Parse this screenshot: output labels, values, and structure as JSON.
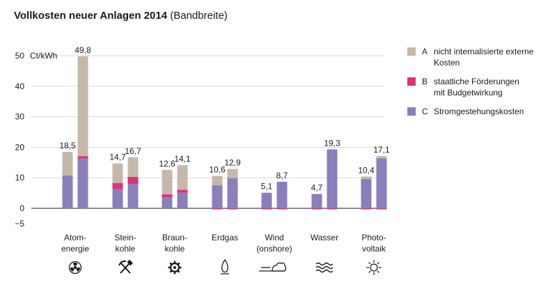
{
  "chart_data": {
    "type": "bar",
    "stacked": true,
    "title": "Vollkosten neuer Anlagen 2014",
    "subtitle": "(Bandbreite)",
    "ylabel": "Ct/kWh",
    "ylim": [
      -5,
      50
    ],
    "yticks": [
      -5,
      0,
      10,
      20,
      30,
      40,
      50
    ],
    "grid": true,
    "legend_position": "right",
    "categories": [
      {
        "label_lines": [
          "Atom-",
          "energie"
        ],
        "icon": "radiation-icon"
      },
      {
        "label_lines": [
          "Stein-",
          "kohle"
        ],
        "icon": "hammer-pick-icon"
      },
      {
        "label_lines": [
          "Braun-",
          "kohle"
        ],
        "icon": "gear-wheel-icon"
      },
      {
        "label_lines": [
          "Erdgas"
        ],
        "icon": "flame-icon"
      },
      {
        "label_lines": [
          "Wind",
          "(onshore)"
        ],
        "icon": "wind-cloud-icon"
      },
      {
        "label_lines": [
          "Wasser"
        ],
        "icon": "waves-icon"
      },
      {
        "label_lines": [
          "Photo-",
          "voltaik"
        ],
        "icon": "sun-icon"
      }
    ],
    "legend": [
      {
        "key": "A",
        "lines": [
          "nicht internalisierte externe",
          "Kosten"
        ],
        "color": "#c5b8ab"
      },
      {
        "key": "B",
        "lines": [
          "staatliche Förderungen",
          "mit Budgetwirkung"
        ],
        "color": "#e0317a"
      },
      {
        "key": "C",
        "lines": [
          "Stromgestehungskosten"
        ],
        "color": "#8a7fbb"
      }
    ],
    "colors": {
      "A": "#c5b8ab",
      "B": "#e0317a",
      "C": "#8a7fbb",
      "grid": "#d9d9d9"
    },
    "bars": [
      {
        "category": 0,
        "C": 10.8,
        "B": 0.0,
        "A": 7.7,
        "neg": 0.0,
        "label": "18,5"
      },
      {
        "category": 0,
        "C": 16.3,
        "B": 0.8,
        "A": 32.7,
        "neg": 0.0,
        "label": "49,8"
      },
      {
        "category": 1,
        "C": 6.3,
        "B": 2.0,
        "A": 6.4,
        "neg": 0.0,
        "label": "14,7"
      },
      {
        "category": 1,
        "C": 8.0,
        "B": 2.3,
        "A": 6.4,
        "neg": 0.0,
        "label": "16,7"
      },
      {
        "category": 2,
        "C": 3.6,
        "B": 1.0,
        "A": 8.0,
        "neg": 0.0,
        "label": "12,6"
      },
      {
        "category": 2,
        "C": 5.1,
        "B": 1.0,
        "A": 8.0,
        "neg": 0.0,
        "label": "14,1"
      },
      {
        "category": 3,
        "C": 7.6,
        "B": 0.0,
        "A": 3.0,
        "neg": 0.2,
        "label": "10,6"
      },
      {
        "category": 3,
        "C": 9.9,
        "B": 0.0,
        "A": 3.0,
        "neg": 0.2,
        "label": "12,9"
      },
      {
        "category": 4,
        "C": 5.1,
        "B": 0.0,
        "A": 0.0,
        "neg": 0.3,
        "label": "5,1"
      },
      {
        "category": 4,
        "C": 8.7,
        "B": 0.0,
        "A": 0.0,
        "neg": 0.3,
        "label": "8,7"
      },
      {
        "category": 5,
        "C": 4.7,
        "B": 0.0,
        "A": 0.0,
        "neg": 0.3,
        "label": "4,7"
      },
      {
        "category": 5,
        "C": 19.3,
        "B": 0.0,
        "A": 0.0,
        "neg": 0.3,
        "label": "19,3"
      },
      {
        "category": 6,
        "C": 9.6,
        "B": 0.0,
        "A": 0.8,
        "neg": 0.2,
        "label": "10,4"
      },
      {
        "category": 6,
        "C": 16.4,
        "B": 0.0,
        "A": 0.7,
        "neg": 0.2,
        "label": "17,1"
      }
    ]
  }
}
